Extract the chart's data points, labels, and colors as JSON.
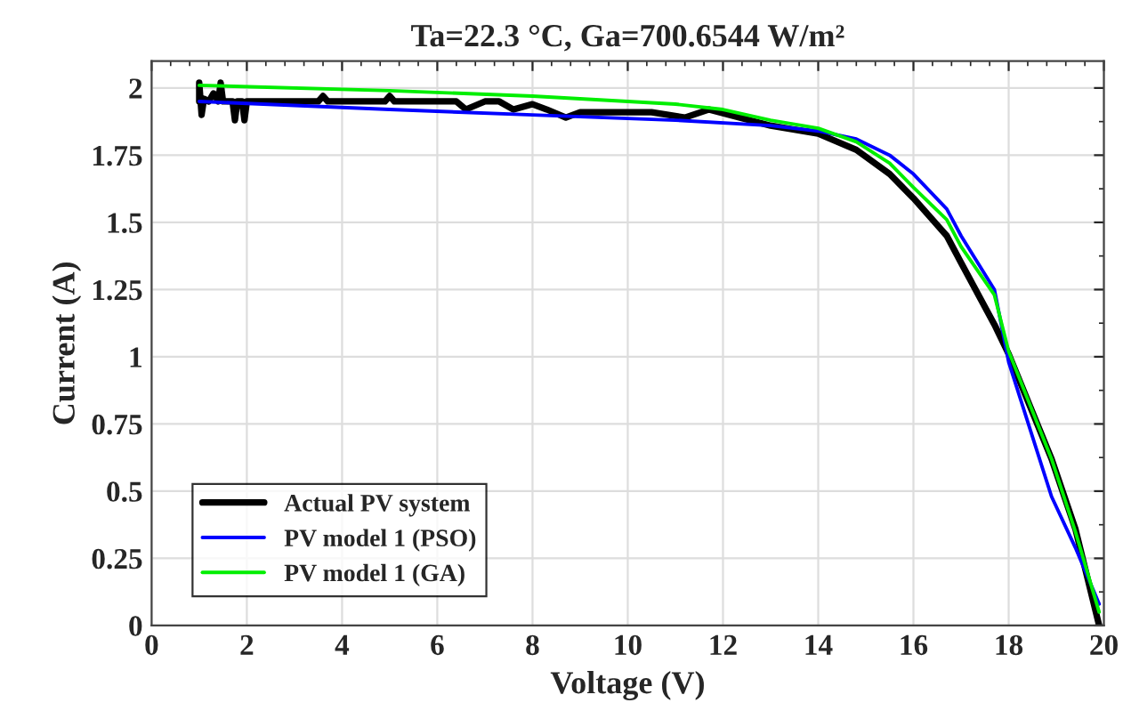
{
  "chart_data": {
    "type": "line",
    "title": "Ta=22.3 °C, Ga=700.6544 W/m²",
    "xlabel": "Voltage (V)",
    "ylabel": "Current (A)",
    "xlim": [
      0,
      20
    ],
    "xticks": [
      0,
      2,
      4,
      6,
      8,
      10,
      12,
      14,
      16,
      18,
      20
    ],
    "ylim": [
      0,
      2.1
    ],
    "yticks": [
      0,
      0.25,
      0.5,
      0.75,
      1,
      1.25,
      1.5,
      1.75,
      2
    ],
    "grid": true,
    "legend": "bottom left",
    "marker": "none",
    "line_style": "solid",
    "series": [
      {
        "name": "Actual PV system",
        "color": "#000000",
        "x": [
          1.0,
          1.0,
          1.05,
          1.1,
          1.2,
          1.3,
          1.4,
          1.45,
          1.5,
          1.6,
          1.7,
          1.75,
          1.8,
          1.9,
          1.95,
          2.0,
          3.5,
          3.6,
          3.7,
          4.9,
          5.0,
          5.1,
          6.4,
          6.6,
          7.0,
          7.3,
          7.6,
          8.0,
          8.3,
          8.7,
          9.0,
          10.5,
          11.2,
          11.7,
          13.0,
          14.0,
          14.8,
          15.5,
          16.0,
          16.7,
          17.0,
          17.7,
          18.0,
          18.9,
          19.4,
          19.9
        ],
        "values": [
          1.95,
          2.02,
          1.9,
          1.96,
          1.95,
          1.98,
          1.95,
          2.02,
          1.95,
          1.95,
          1.95,
          1.88,
          1.95,
          1.95,
          1.88,
          1.95,
          1.95,
          1.97,
          1.95,
          1.95,
          1.97,
          1.95,
          1.95,
          1.92,
          1.95,
          1.95,
          1.92,
          1.94,
          1.92,
          1.89,
          1.91,
          1.91,
          1.89,
          1.92,
          1.86,
          1.83,
          1.77,
          1.68,
          1.59,
          1.45,
          1.35,
          1.12,
          1.01,
          0.62,
          0.36,
          0.0
        ]
      },
      {
        "name": "PV model 1 (PSO)",
        "color": "#0000ff",
        "x": [
          1,
          5,
          8,
          11,
          13,
          14,
          14.8,
          15.5,
          16,
          16.7,
          17,
          17.7,
          18,
          18.9,
          19.4,
          19.9
        ],
        "values": [
          1.95,
          1.92,
          1.9,
          1.88,
          1.86,
          1.84,
          1.81,
          1.75,
          1.68,
          1.55,
          1.45,
          1.25,
          0.98,
          0.48,
          0.29,
          0.08
        ]
      },
      {
        "name": "PV model 1 (GA)",
        "color": "#00ee00",
        "x": [
          1,
          5,
          8,
          11,
          12,
          13,
          14,
          14.8,
          15.5,
          16,
          16.7,
          17,
          17.7,
          18,
          18.9,
          19.4,
          19.9
        ],
        "values": [
          2.01,
          1.99,
          1.97,
          1.94,
          1.92,
          1.88,
          1.85,
          1.8,
          1.72,
          1.63,
          1.51,
          1.41,
          1.23,
          1.02,
          0.62,
          0.35,
          0.05
        ]
      }
    ]
  }
}
